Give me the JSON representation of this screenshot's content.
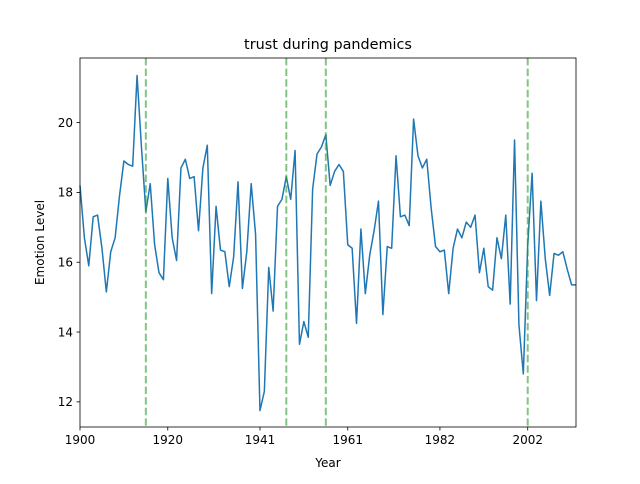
{
  "chart_data": {
    "type": "line",
    "title": "trust during pandemics",
    "xlabel": "Year",
    "ylabel": "Emotion Level",
    "xlim": [
      1900,
      2013
    ],
    "ylim": [
      11.28,
      21.85
    ],
    "x_ticks": [
      1900,
      1920,
      1941,
      1961,
      1982,
      2002
    ],
    "x_tick_labels": [
      "1900",
      "1920",
      "1941",
      "1961",
      "1982",
      "2002"
    ],
    "y_ticks": [
      12,
      14,
      16,
      18,
      20
    ],
    "y_tick_labels": [
      "12",
      "14",
      "16",
      "18",
      "20"
    ],
    "grid": false,
    "series": [
      {
        "color": "#1f77b4",
        "x": [
          1900,
          1901,
          1902,
          1903,
          1904,
          1905,
          1906,
          1907,
          1908,
          1909,
          1910,
          1911,
          1912,
          1913,
          1914,
          1915,
          1916,
          1917,
          1918,
          1919,
          1920,
          1921,
          1922,
          1923,
          1924,
          1925,
          1926,
          1927,
          1928,
          1929,
          1930,
          1931,
          1932,
          1933,
          1934,
          1935,
          1936,
          1937,
          1938,
          1939,
          1940,
          1941,
          1942,
          1943,
          1944,
          1945,
          1946,
          1947,
          1948,
          1949,
          1950,
          1951,
          1952,
          1953,
          1954,
          1955,
          1956,
          1957,
          1958,
          1959,
          1960,
          1961,
          1962,
          1963,
          1964,
          1965,
          1966,
          1967,
          1968,
          1969,
          1970,
          1971,
          1972,
          1973,
          1974,
          1975,
          1976,
          1977,
          1978,
          1979,
          1980,
          1981,
          1982,
          1983,
          1984,
          1985,
          1986,
          1987,
          1988,
          1989,
          1990,
          1991,
          1992,
          1993,
          1994,
          1995,
          1996,
          1997,
          1998,
          1999,
          2000,
          2001,
          2002,
          2003,
          2004,
          2005,
          2006,
          2007,
          2008,
          2009,
          2010,
          2011,
          2012,
          2013
        ],
        "y": [
          18.2,
          16.7,
          15.9,
          17.3,
          17.35,
          16.4,
          15.15,
          16.3,
          16.7,
          17.9,
          18.9,
          18.8,
          18.75,
          21.35,
          19.3,
          17.45,
          18.25,
          16.5,
          15.7,
          15.5,
          18.4,
          16.7,
          16.05,
          18.7,
          18.95,
          18.4,
          18.45,
          16.9,
          18.7,
          19.35,
          15.1,
          17.6,
          16.35,
          16.3,
          15.3,
          16.15,
          18.3,
          15.25,
          16.3,
          18.25,
          16.8,
          11.75,
          12.3,
          15.85,
          14.6,
          17.6,
          17.8,
          18.45,
          17.8,
          19.2,
          13.65,
          14.3,
          13.85,
          18.1,
          19.1,
          19.3,
          19.65,
          18.2,
          18.6,
          18.8,
          18.6,
          16.5,
          16.4,
          14.25,
          16.95,
          15.1,
          16.2,
          16.9,
          17.75,
          14.5,
          16.45,
          16.4,
          19.05,
          17.3,
          17.35,
          17.05,
          20.1,
          19.05,
          18.7,
          18.95,
          17.55,
          16.45,
          16.3,
          16.35,
          15.1,
          16.4,
          16.95,
          16.7,
          17.15,
          17.0,
          17.35,
          15.7,
          16.4,
          15.3,
          15.2,
          16.7,
          16.1,
          17.35,
          14.8,
          19.5,
          14.2,
          12.8,
          16.5,
          18.55,
          14.9,
          17.75,
          16.1,
          15.05,
          16.25,
          16.2,
          16.3,
          15.8,
          15.35,
          15.35
        ]
      }
    ],
    "vlines": [
      {
        "x": 1915,
        "color": "#2ca02c"
      },
      {
        "x": 1947,
        "color": "#2ca02c"
      },
      {
        "x": 1956,
        "color": "#2ca02c"
      },
      {
        "x": 2002,
        "color": "#2ca02c"
      }
    ]
  }
}
